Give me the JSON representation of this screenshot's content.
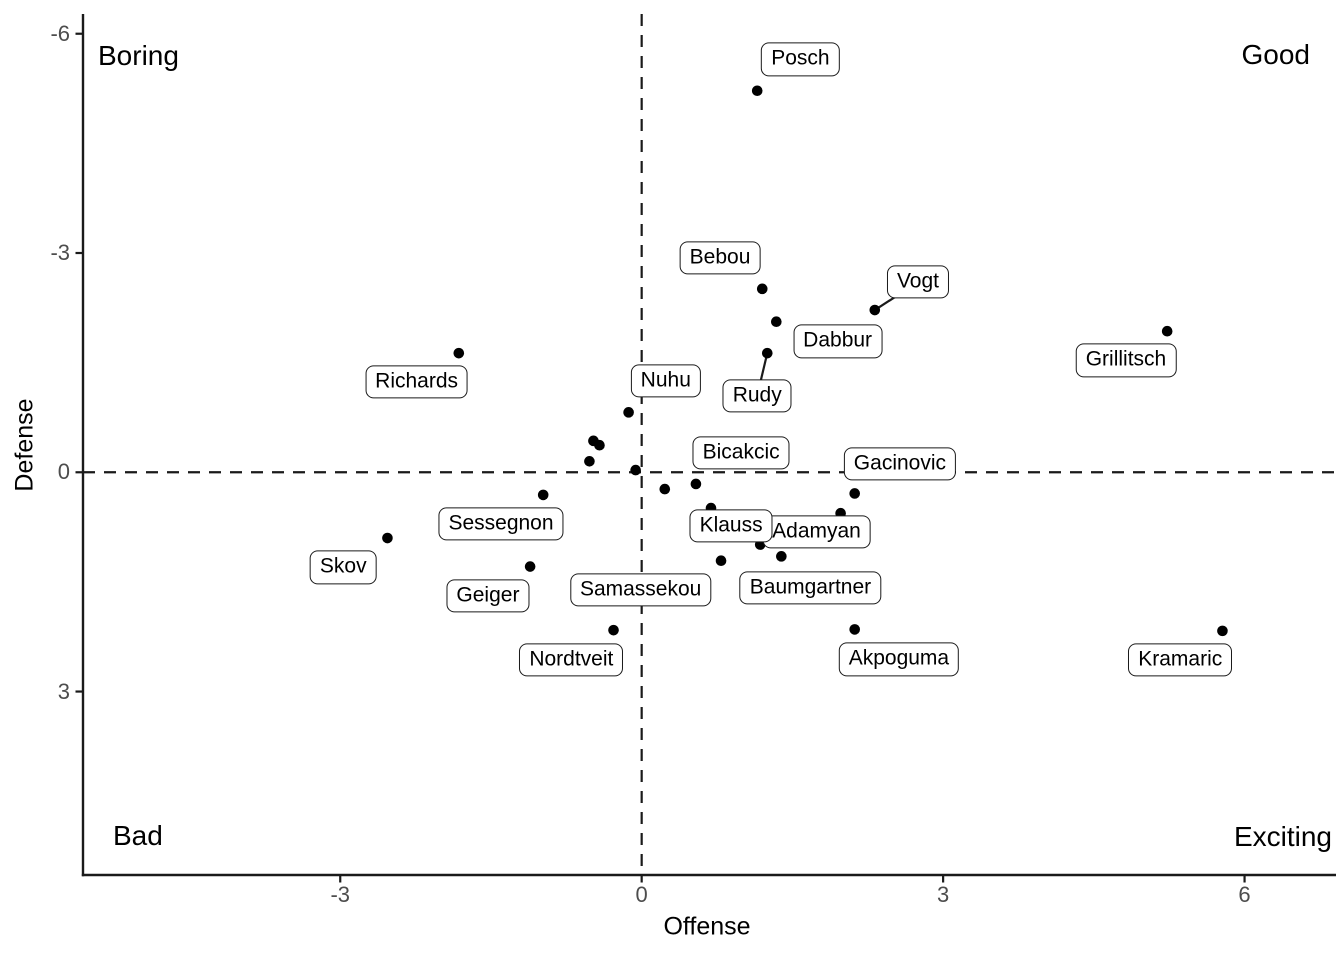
{
  "chart_data": {
    "type": "scatter",
    "title": "",
    "xlabel": "Offense",
    "ylabel": "Defense",
    "x_ticks": [
      "-3",
      "0",
      "3",
      "6"
    ],
    "x_tick_values": [
      -3,
      0,
      3,
      6
    ],
    "y_ticks": [
      "-6",
      "-3",
      "0",
      "3"
    ],
    "y_tick_values": [
      -6,
      -3,
      0,
      3
    ],
    "x_range": [
      -5.56,
      6.91
    ],
    "y_range_top_to_bottom": [
      -6.27,
      5.51
    ],
    "y_axis_reversed": true,
    "grid": false,
    "legend": "none",
    "reference_lines": [
      {
        "axis": "x",
        "value": 0,
        "style": "dashed"
      },
      {
        "axis": "y",
        "value": 0,
        "style": "dashed"
      }
    ],
    "corner_annotations": {
      "top_left": "Boring",
      "top_right": "Good",
      "bottom_left": "Bad",
      "bottom_right": "Exciting"
    },
    "points": [
      {
        "label": "Posch",
        "x": 1.15,
        "y": -5.22
      },
      {
        "label": "Bebou",
        "x": 1.2,
        "y": -2.51
      },
      {
        "label": "Dabbur",
        "x": 1.34,
        "y": -2.06
      },
      {
        "label": "Vogt",
        "x": 2.32,
        "y": -2.22
      },
      {
        "label": "Rudy",
        "x": 1.25,
        "y": -1.63
      },
      {
        "label": "Richards",
        "x": -1.82,
        "y": -1.63
      },
      {
        "label": "Grillitsch",
        "x": 5.23,
        "y": -1.93
      },
      {
        "label": "Nuhu",
        "x": -0.13,
        "y": -0.82
      },
      {
        "label": null,
        "x": -0.48,
        "y": -0.43
      },
      {
        "label": null,
        "x": -0.42,
        "y": -0.37
      },
      {
        "label": null,
        "x": -0.52,
        "y": -0.15
      },
      {
        "label": null,
        "x": -0.06,
        "y": -0.03
      },
      {
        "label": null,
        "x": 0.23,
        "y": 0.23
      },
      {
        "label": "Bicakcic",
        "x": 0.54,
        "y": 0.16
      },
      {
        "label": "Gacinovic",
        "x": 2.12,
        "y": 0.29
      },
      {
        "label": null,
        "x": 1.98,
        "y": 0.56
      },
      {
        "label": "Klauss",
        "x": 0.69,
        "y": 0.49
      },
      {
        "label": "Adamyan",
        "x": 1.18,
        "y": 0.99
      },
      {
        "label": "Baumgartner",
        "x": 1.39,
        "y": 1.15
      },
      {
        "label": "Samassekou",
        "x": 0.79,
        "y": 1.21
      },
      {
        "label": "Sessegnon",
        "x": -0.98,
        "y": 0.31
      },
      {
        "label": "Skov",
        "x": -2.53,
        "y": 0.9
      },
      {
        "label": "Geiger",
        "x": -1.11,
        "y": 1.29
      },
      {
        "label": "Nordtveit",
        "x": -0.28,
        "y": 2.16
      },
      {
        "label": "Akpoguma",
        "x": 2.12,
        "y": 2.15
      },
      {
        "label": "Kramaric",
        "x": 5.78,
        "y": 2.17
      }
    ],
    "label_boxes": [
      {
        "text": "Posch",
        "x": 1.58,
        "y": -5.65
      },
      {
        "text": "Bebou",
        "x": 0.78,
        "y": -2.93
      },
      {
        "text": "Vogt",
        "x": 2.75,
        "y": -2.6
      },
      {
        "text": "Dabbur",
        "x": 1.95,
        "y": -1.79
      },
      {
        "text": "Rudy",
        "x": 1.15,
        "y": -1.05
      },
      {
        "text": "Richards",
        "x": -2.24,
        "y": -1.24
      },
      {
        "text": "Nuhu",
        "x": 0.24,
        "y": -1.25
      },
      {
        "text": "Grillitsch",
        "x": 4.82,
        "y": -1.53
      },
      {
        "text": "Bicakcic",
        "x": 0.99,
        "y": -0.27
      },
      {
        "text": "Gacinovic",
        "x": 2.57,
        "y": -0.12
      },
      {
        "text": "Adamyan",
        "x": 1.74,
        "y": 0.82
      },
      {
        "text": "Klauss",
        "x": 0.89,
        "y": 0.73
      },
      {
        "text": "Sessegnon",
        "x": -1.4,
        "y": 0.71
      },
      {
        "text": "Skov",
        "x": -2.97,
        "y": 1.3
      },
      {
        "text": "Geiger",
        "x": -1.53,
        "y": 1.69
      },
      {
        "text": "Samassekou",
        "x": -0.01,
        "y": 1.61
      },
      {
        "text": "Baumgartner",
        "x": 1.68,
        "y": 1.58
      },
      {
        "text": "Nordtveit",
        "x": -0.7,
        "y": 2.57
      },
      {
        "text": "Akpoguma",
        "x": 2.56,
        "y": 2.56
      },
      {
        "text": "Kramaric",
        "x": 5.36,
        "y": 2.57
      }
    ],
    "leader_lines": [
      {
        "label": "Vogt",
        "from": [
          2.32,
          -2.22
        ],
        "to": [
          2.75,
          -2.6
        ]
      },
      {
        "label": "Rudy",
        "from": [
          1.25,
          -1.63
        ],
        "to": [
          1.15,
          -1.05
        ]
      }
    ],
    "point_color": "#000000",
    "tick_label_color": "#4d4d4d",
    "axis_color": "#1a1a1a",
    "background_color": "#ffffff"
  }
}
